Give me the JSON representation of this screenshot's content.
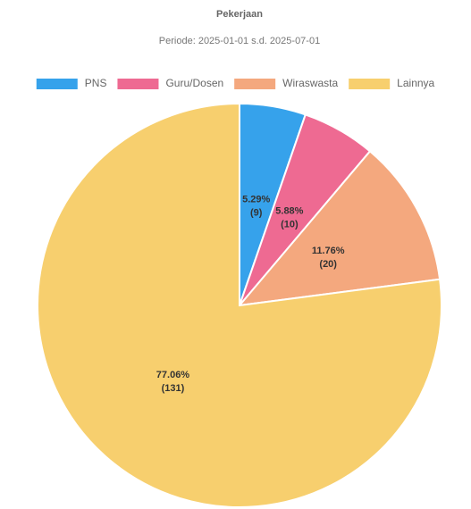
{
  "chart_data": {
    "type": "pie",
    "title": "Pekerjaan",
    "subtitle": "Periode: 2025-01-01 s.d. 2025-07-01",
    "categories": [
      "PNS",
      "Guru/Dosen",
      "Wiraswasta",
      "Lainnya"
    ],
    "values": [
      5.29,
      5.88,
      11.76,
      77.06
    ],
    "value_labels": [
      "5.29%",
      "5.88%",
      "11.76%",
      "77.06%"
    ],
    "counts": [
      9,
      10,
      20,
      131
    ],
    "count_labels": [
      "(9)",
      "(10)",
      "(20)",
      "(131)"
    ],
    "colors": [
      "#36a2eb",
      "#ee6a92",
      "#f4a87e",
      "#f7cf6e"
    ],
    "legend": "top"
  }
}
